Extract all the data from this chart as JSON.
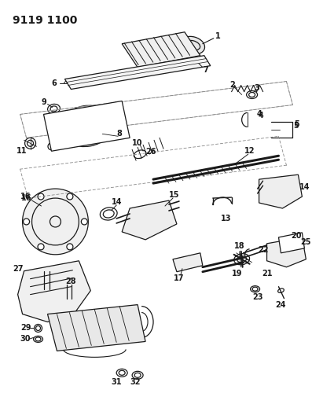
{
  "title": "9119 1100",
  "bg_color": "#ffffff",
  "line_color": "#1a1a1a",
  "fig_width": 4.11,
  "fig_height": 5.33,
  "dpi": 100
}
